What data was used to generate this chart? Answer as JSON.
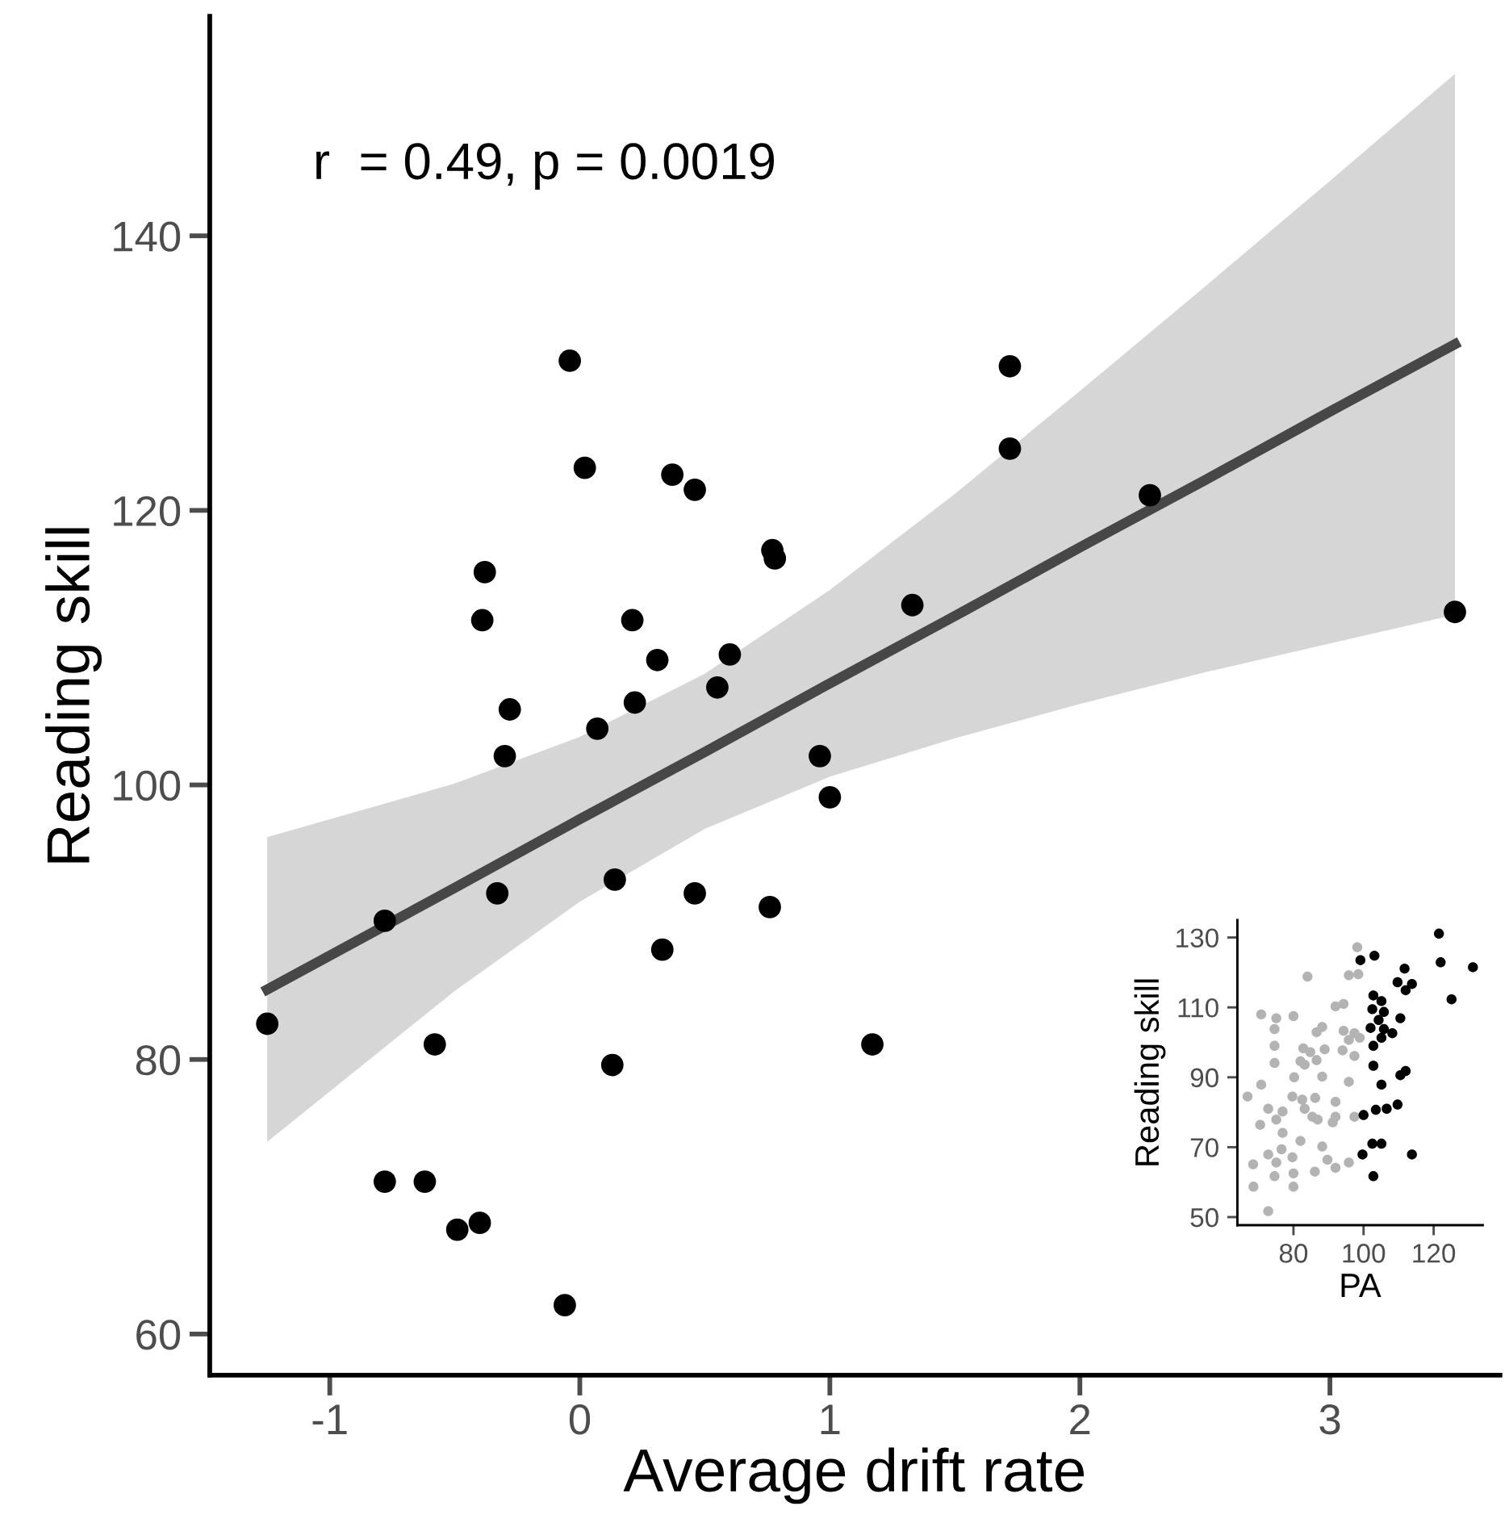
{
  "chart_data": [
    {
      "type": "scatter",
      "xlabel": "Average drift rate",
      "ylabel": "Reading skill",
      "annotations": [
        "r  = 0.49, p = 0.0019"
      ],
      "xlim": [
        -1.48,
        3.68
      ],
      "ylim": [
        57,
        156
      ],
      "xticks": [
        -1,
        0,
        1,
        2,
        3
      ],
      "yticks": [
        60,
        80,
        100,
        120,
        140
      ],
      "grid": false,
      "legend": false,
      "series": [
        {
          "type": "scatter",
          "marker": "circle",
          "color": "#000000",
          "x": [
            -1.25,
            -0.78,
            -0.58,
            -0.78,
            -0.62,
            -0.49,
            -0.4,
            -0.06,
            -0.33,
            0.14,
            0.13,
            0.46,
            0.33,
            0.76,
            1.0,
            1.17,
            -0.04,
            0.02,
            0.37,
            0.46,
            0.77,
            0.78,
            -0.38,
            -0.39,
            0.21,
            0.31,
            0.6,
            0.55,
            0.22,
            -0.28,
            0.07,
            -0.3,
            0.96,
            1.72,
            1.72,
            2.28,
            1.33,
            3.5
          ],
          "values": [
            82.6,
            90.1,
            81.1,
            71.1,
            71.1,
            67.6,
            68.1,
            62.1,
            92.1,
            93.1,
            79.6,
            92.1,
            88.0,
            91.1,
            99.1,
            81.1,
            130.9,
            123.1,
            122.6,
            121.5,
            117.1,
            116.5,
            115.5,
            112.0,
            112.0,
            109.1,
            109.5,
            107.1,
            106.0,
            105.5,
            104.1,
            102.1,
            102.1,
            130.5,
            124.5,
            121.1,
            113.1,
            112.6
          ]
        },
        {
          "type": "line",
          "marker": "none",
          "color": "#474747",
          "line_style": "solid",
          "x": [
            -1.25,
            -0.5,
            0,
            0.5,
            1,
            1.5,
            2,
            2.5,
            3,
            3.5
          ],
          "values": [
            85.1,
            92.5,
            97.5,
            102.4,
            107.4,
            112.3,
            117.3,
            122.2,
            127.2,
            132.1
          ],
          "lower": [
            74.0,
            85.0,
            91.5,
            96.8,
            100.6,
            103.4,
            105.9,
            108.2,
            110.3,
            112.4
          ],
          "upper": [
            96.2,
            100.1,
            103.5,
            108.1,
            114.2,
            121.2,
            128.7,
            136.3,
            144.0,
            151.8
          ]
        }
      ]
    },
    {
      "type": "scatter",
      "xlabel": "PA",
      "ylabel": "Reading skill",
      "xlim": [
        64,
        134
      ],
      "ylim": [
        47.7,
        135
      ],
      "xticks": [
        80,
        100,
        120
      ],
      "yticks": [
        50,
        70,
        90,
        110,
        130
      ],
      "grid": false,
      "legend": false,
      "marker": "circle",
      "series": [
        {
          "color": "#b3b3b3",
          "x": [
            98.2,
            84.0,
            95.8,
            98.5,
            94.3,
            92.0,
            70.8,
            75.1,
            80.0,
            74.6,
            86.6,
            88.2,
            94.3,
            97.4,
            98.9,
            95.8,
            74.6,
            82.8,
            84.8,
            88.9,
            94.0,
            97.4,
            74.6,
            82.0,
            86.6,
            83.2,
            88.2,
            80.2,
            95.8,
            70.8,
            66.9,
            79.7,
            82.5,
            86.2,
            92.0,
            72.8,
            76.9,
            83.2,
            85.4,
            86.9,
            75.1,
            70.5,
            92.0,
            97.4,
            76.9,
            91.2,
            82.0,
            88.2,
            76.6,
            72.8,
            68.5,
            79.7,
            75.1,
            89.7,
            95.8,
            92.0,
            86.1,
            80.0,
            74.6,
            80.0,
            68.6,
            72.8
          ],
          "values": [
            127.2,
            118.8,
            119.2,
            119.5,
            111.0,
            110.3,
            108.0,
            106.9,
            107.5,
            103.8,
            102.9,
            104.4,
            103.3,
            102.6,
            101.3,
            100.7,
            99.0,
            98.3,
            97.2,
            98.0,
            97.7,
            96.1,
            94.1,
            94.6,
            94.9,
            93.6,
            90.2,
            90.0,
            88.7,
            87.9,
            84.5,
            84.5,
            83.6,
            84.1,
            83.0,
            81.0,
            80.2,
            81.0,
            78.7,
            77.9,
            77.9,
            76.4,
            78.7,
            78.7,
            74.1,
            77.1,
            71.8,
            70.2,
            69.4,
            67.9,
            65.1,
            67.1,
            65.6,
            66.4,
            65.6,
            64.1,
            63.0,
            62.5,
            61.7,
            58.7,
            58.7,
            51.7
          ]
        },
        {
          "color": "#000000",
          "x": [
            121.5,
            122.0,
            131.2,
            125.1,
            99.1,
            103.1,
            111.7,
            109.7,
            113.8,
            112.0,
            102.8,
            105.1,
            102.5,
            105.8,
            110.5,
            104.3,
            102.0,
            105.8,
            108.2,
            105.1,
            102.8,
            102.8,
            105.1,
            110.5,
            112.0,
            109.7,
            106.6,
            103.5,
            100.0,
            99.7,
            102.5,
            105.1,
            113.8,
            102.8
          ],
          "values": [
            131.1,
            122.9,
            121.5,
            112.3,
            123.5,
            124.8,
            121.1,
            117.2,
            116.7,
            114.9,
            113.4,
            111.8,
            109.5,
            108.7,
            106.9,
            106.4,
            104.1,
            103.8,
            102.6,
            101.3,
            99.0,
            93.3,
            87.9,
            90.6,
            91.8,
            82.2,
            81.0,
            80.7,
            79.2,
            67.9,
            71.0,
            71.0,
            67.9,
            61.7
          ]
        }
      ]
    }
  ]
}
